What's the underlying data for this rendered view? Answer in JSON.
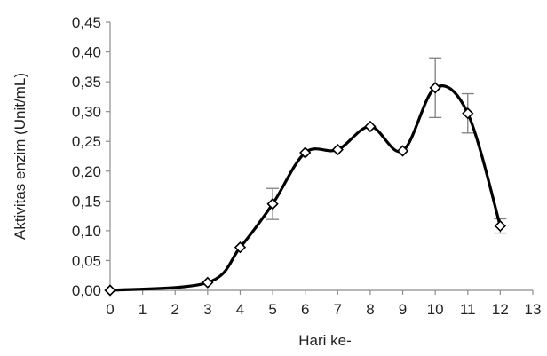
{
  "chart_data": {
    "type": "line",
    "title": "",
    "xlabel": "Hari ke-",
    "ylabel": "Aktivitas enzim (Unit/mL)",
    "xlim": [
      0,
      13
    ],
    "ylim": [
      0,
      0.45
    ],
    "grid": false,
    "x_ticks": [
      "0",
      "1",
      "2",
      "3",
      "4",
      "5",
      "6",
      "7",
      "8",
      "9",
      "10",
      "11",
      "12",
      "13"
    ],
    "y_ticks": [
      "0,00",
      "0,05",
      "0,10",
      "0,15",
      "0,20",
      "0,25",
      "0,30",
      "0,35",
      "0,40",
      "0,45"
    ],
    "series": [
      {
        "x": [
          0,
          3,
          4,
          5,
          6,
          7,
          8,
          9,
          10,
          11,
          12
        ],
        "y": [
          0.0,
          0.013,
          0.072,
          0.145,
          0.231,
          0.236,
          0.275,
          0.234,
          0.34,
          0.297,
          0.108
        ],
        "error": [
          0,
          0,
          0,
          0.026,
          0,
          0,
          0,
          0,
          0.05,
          0.033,
          0.012
        ]
      }
    ]
  }
}
